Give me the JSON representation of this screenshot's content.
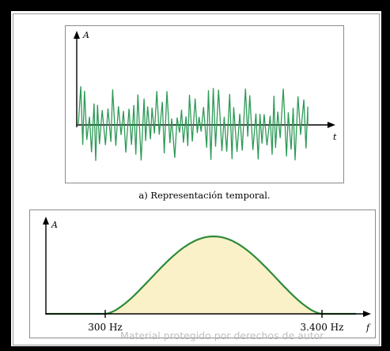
{
  "top_panel": {
    "y_axis_letter": "A",
    "x_axis_letter": "t",
    "caption": "a) Representación temporal.",
    "signal_color": "#2e9a57"
  },
  "bottom_panel": {
    "y_axis_letter": "A",
    "x_axis_letter": "f",
    "tick_low": "300 Hz",
    "tick_high": "3.400 Hz",
    "curve_color": "#2e8b3a",
    "fill_color": "#fbf1c8"
  },
  "watermark": "Material protegido por derechos de autor"
}
